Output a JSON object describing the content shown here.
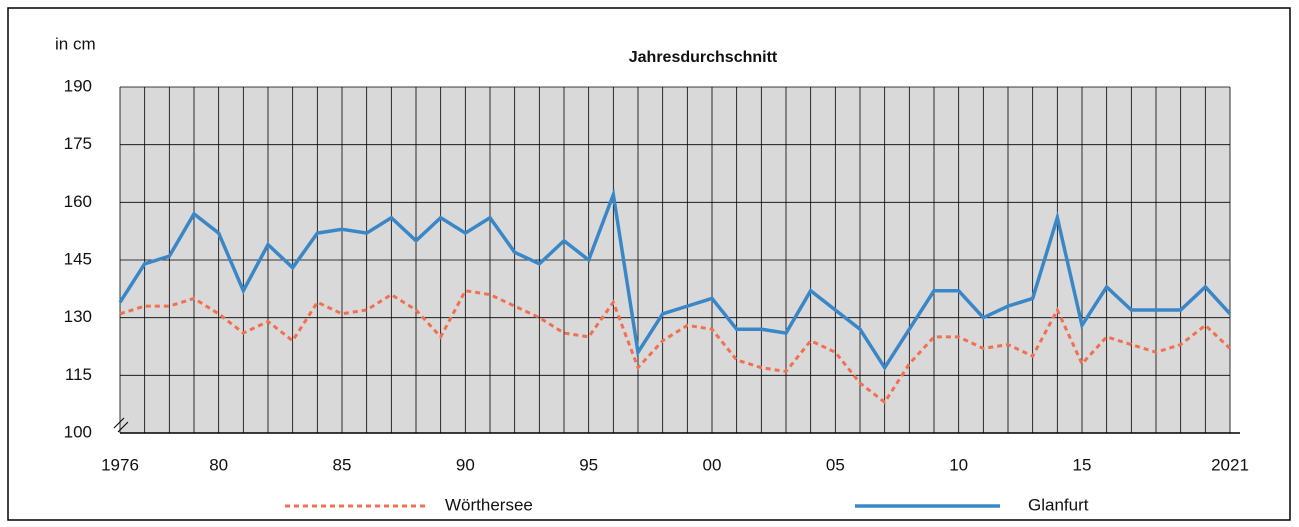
{
  "chart_data": {
    "type": "line",
    "title": "Jahresdurchschnitt",
    "y_label": "in cm",
    "categories": [
      "1976",
      null,
      null,
      null,
      "80",
      null,
      null,
      null,
      null,
      "85",
      null,
      null,
      null,
      null,
      "90",
      null,
      null,
      null,
      null,
      "95",
      null,
      null,
      null,
      null,
      "00",
      null,
      null,
      null,
      null,
      "05",
      null,
      null,
      null,
      null,
      "10",
      null,
      null,
      null,
      null,
      "15",
      null,
      null,
      null,
      null,
      null,
      "2021"
    ],
    "series": [
      {
        "name": "Wörthersee",
        "color": "#f07050",
        "dashed": true,
        "values": [
          131,
          133,
          133,
          135,
          131,
          126,
          129,
          124,
          134,
          131,
          132,
          136,
          132,
          125,
          137,
          136,
          133,
          130,
          126,
          125,
          134,
          117,
          124,
          128,
          127,
          119,
          117,
          116,
          124,
          121,
          113,
          108,
          118,
          125,
          125,
          122,
          123,
          120,
          132,
          118,
          125,
          123,
          121,
          123,
          128,
          122
        ]
      },
      {
        "name": "Glanfurt",
        "color": "#3a87c8",
        "dashed": false,
        "values": [
          134,
          144,
          146,
          157,
          152,
          137,
          149,
          143,
          152,
          153,
          152,
          156,
          150,
          156,
          152,
          156,
          147,
          144,
          150,
          145,
          162,
          121,
          131,
          133,
          135,
          127,
          127,
          126,
          137,
          132,
          127,
          117,
          127,
          137,
          137,
          130,
          133,
          135,
          156,
          128,
          138,
          132,
          132,
          132,
          138,
          131
        ]
      }
    ],
    "ylim": [
      100,
      190
    ],
    "yticks": [
      100,
      115,
      130,
      145,
      160,
      175,
      190
    ],
    "grid": true
  }
}
